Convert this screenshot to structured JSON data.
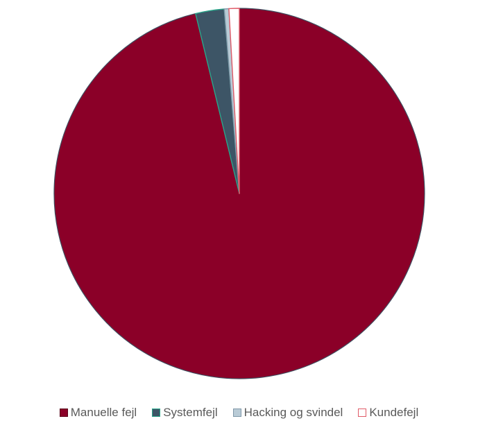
{
  "chart_data": {
    "type": "pie",
    "title": "",
    "start_angle_deg": 0,
    "direction": "clockwise",
    "slices": [
      {
        "label": "Manuelle fejl",
        "value": 96.2,
        "color": "#8b0028",
        "stroke": "#3f4d5f",
        "legend_border": "#5a0018"
      },
      {
        "label": "Systemfejl",
        "value": 2.5,
        "color": "#3d5566",
        "stroke": "#2aa58a",
        "legend_border": "#2aa58a"
      },
      {
        "label": "Hacking og svindel",
        "value": 0.4,
        "color": "#b9cbd6",
        "stroke": "#7f97a8",
        "legend_border": "#7f97a8"
      },
      {
        "label": "Kundefejl",
        "value": 0.9,
        "color": "#ffffff",
        "stroke": "#e05a67",
        "legend_border": "#e05a67"
      }
    ],
    "legend_position": "bottom"
  }
}
